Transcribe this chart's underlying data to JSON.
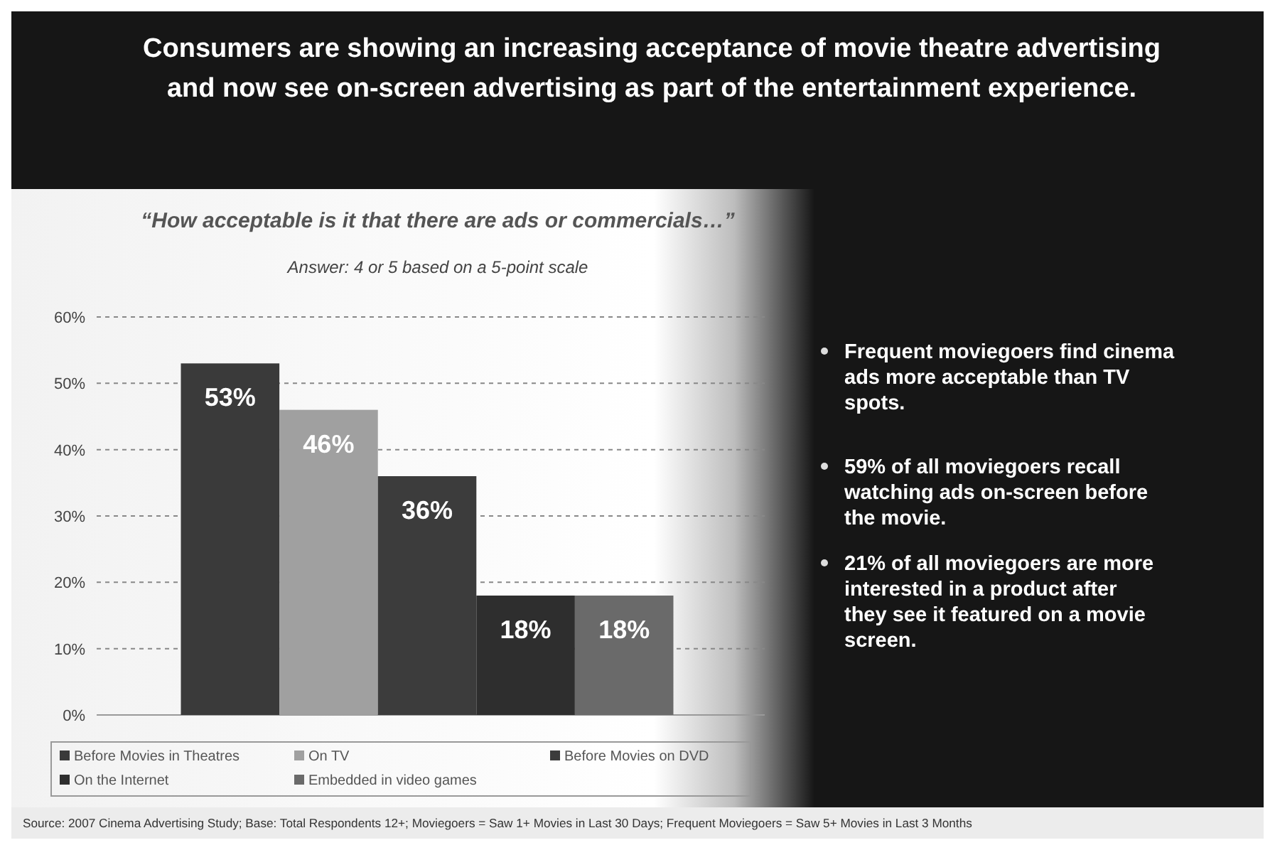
{
  "chart_data": {
    "type": "bar",
    "title": "Consumers are showing an increasing acceptance of movie theatre advertising and now see on-screen advertising as part of the entertainment experience.",
    "subtitle": "“How acceptable is it that there are ads or commercials…”",
    "categories": [
      null
    ],
    "series": [
      {
        "name": "Before Movies in Theatres",
        "color": "#3a3a3a",
        "values": [
          53
        ],
        "value_labels": [
          "53%"
        ]
      },
      {
        "name": "On TV",
        "color": "#a0a0a0",
        "values": [
          46
        ],
        "value_labels": [
          "46%"
        ]
      },
      {
        "name": "Before Movies on DVD",
        "color": "#3c3c3c",
        "values": [
          36
        ],
        "value_labels": [
          "36%"
        ]
      },
      {
        "name": "On the Internet",
        "color": "#2e2e2e",
        "values": [
          18
        ],
        "value_labels": [
          "18%"
        ]
      },
      {
        "name": "Embedded in video games",
        "color": "#6a6a6a",
        "values": [
          18
        ],
        "value_labels": [
          "18%"
        ]
      }
    ],
    "ylim": [
      0,
      60
    ],
    "yticks": [
      {
        "value": 0,
        "label": "0%"
      },
      {
        "value": 10,
        "label": "10%"
      },
      {
        "value": 20,
        "label": "20%"
      },
      {
        "value": 30,
        "label": "30%"
      },
      {
        "value": 40,
        "label": "40%"
      },
      {
        "value": 50,
        "label": "50%"
      },
      {
        "value": 60,
        "label": "60%"
      }
    ],
    "grid": "y",
    "legend": "bottom",
    "annotations": [
      "Answer: 4 or 5 based on a 5-point scale",
      "Frequent moviegoers find cinema ads more acceptable than TV spots.",
      "59% of all moviegoers recall watching ads on-screen before the movie.",
      "21% of all moviegoers are more interested in a product after they see it featured on a movie screen.",
      "Source: 2007 Cinema Advertising Study; Base: Total Respondents 12+; Moviegoers = Saw 1+ Movies in Last 30 Days; Frequent Moviegoers = Saw 5+ Movies in Last 3 Months"
    ]
  }
}
